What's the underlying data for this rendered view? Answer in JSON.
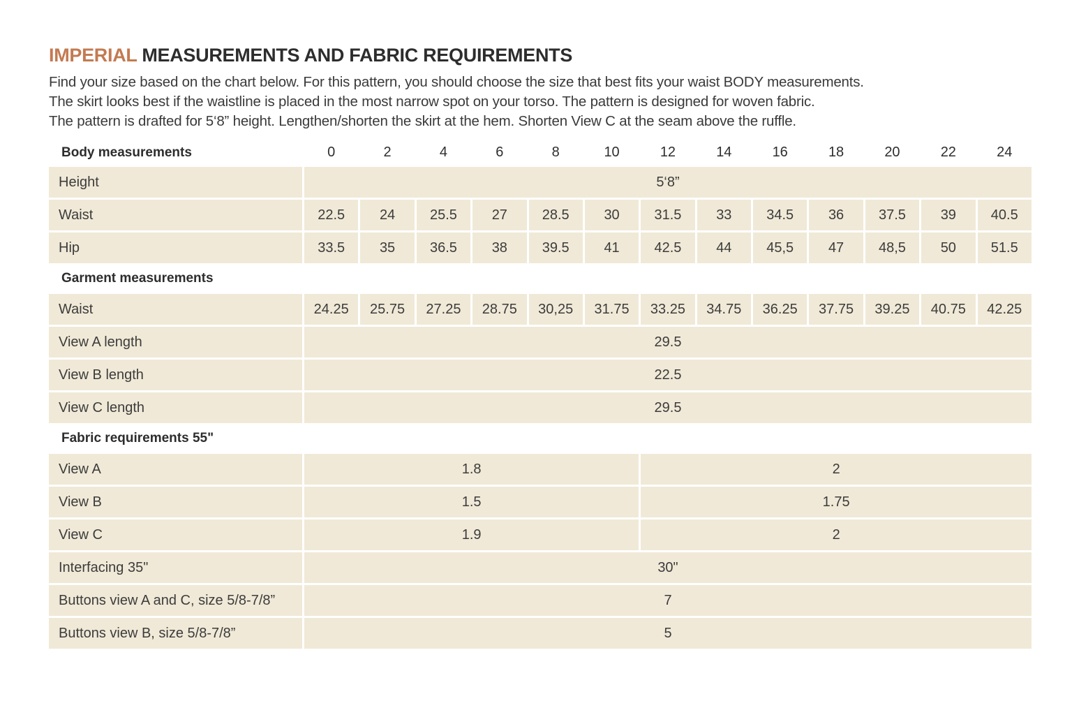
{
  "title": {
    "highlight": "IMPERIAL",
    "rest": " MEASUREMENTS AND FABRIC REQUIREMENTS"
  },
  "intro_lines": [
    "Find your size based on the chart below. For this pattern, you should choose the size that best fits your waist BODY measurements.",
    "The skirt looks best if the waistline is placed in the most narrow spot on your torso. The pattern is designed for woven fabric.",
    "The pattern is drafted for 5‘8” height. Lengthen/shorten the skirt at the hem. Shorten View C at the seam above the ruffle."
  ],
  "colors": {
    "accent": "#c47a51",
    "cell_background": "#f0e9d7",
    "heading_text": "#2d2d2d",
    "body_text": "#3c3c3c"
  },
  "table": {
    "header": {
      "label": "Body measurements",
      "sizes": [
        "0",
        "2",
        "4",
        "6",
        "8",
        "10",
        "12",
        "14",
        "16",
        "18",
        "20",
        "22",
        "24"
      ]
    },
    "rows": [
      {
        "label": "Height",
        "cells": [
          {
            "v": "5‘8”",
            "span": 13
          }
        ]
      },
      {
        "label": "Waist",
        "cells": [
          {
            "v": "22.5"
          },
          {
            "v": "24"
          },
          {
            "v": "25.5"
          },
          {
            "v": "27"
          },
          {
            "v": "28.5"
          },
          {
            "v": "30"
          },
          {
            "v": "31.5"
          },
          {
            "v": "33"
          },
          {
            "v": "34.5"
          },
          {
            "v": "36"
          },
          {
            "v": "37.5"
          },
          {
            "v": "39"
          },
          {
            "v": "40.5"
          }
        ]
      },
      {
        "label": "Hip",
        "cells": [
          {
            "v": "33.5"
          },
          {
            "v": "35"
          },
          {
            "v": "36.5"
          },
          {
            "v": "38"
          },
          {
            "v": "39.5"
          },
          {
            "v": "41"
          },
          {
            "v": "42.5"
          },
          {
            "v": "44"
          },
          {
            "v": "45,5"
          },
          {
            "v": "47"
          },
          {
            "v": "48,5"
          },
          {
            "v": "50"
          },
          {
            "v": "51.5"
          }
        ]
      },
      {
        "section": "Garment measurements"
      },
      {
        "label": "Waist",
        "cells": [
          {
            "v": "24.25"
          },
          {
            "v": "25.75"
          },
          {
            "v": "27.25"
          },
          {
            "v": "28.75"
          },
          {
            "v": "30,25"
          },
          {
            "v": "31.75"
          },
          {
            "v": "33.25"
          },
          {
            "v": "34.75"
          },
          {
            "v": "36.25"
          },
          {
            "v": "37.75"
          },
          {
            "v": "39.25"
          },
          {
            "v": "40.75"
          },
          {
            "v": "42.25"
          }
        ]
      },
      {
        "label": "View A length",
        "cells": [
          {
            "v": "29.5",
            "span": 13
          }
        ]
      },
      {
        "label": "View B length",
        "cells": [
          {
            "v": "22.5",
            "span": 13
          }
        ]
      },
      {
        "label": "View C length",
        "cells": [
          {
            "v": "29.5",
            "span": 13
          }
        ]
      },
      {
        "section": "Fabric requirements 55\""
      },
      {
        "label": "View A",
        "cells": [
          {
            "v": "1.8",
            "span": 6
          },
          {
            "v": "2",
            "span": 7
          }
        ]
      },
      {
        "label": "View B",
        "cells": [
          {
            "v": "1.5",
            "span": 6
          },
          {
            "v": "1.75",
            "span": 7
          }
        ]
      },
      {
        "label": "View C",
        "cells": [
          {
            "v": "1.9",
            "span": 6
          },
          {
            "v": "2",
            "span": 7
          }
        ]
      },
      {
        "label": "Interfacing 35\"",
        "cells": [
          {
            "v": "30\"",
            "span": 13
          }
        ]
      },
      {
        "label": "Buttons view A and C, size 5/8-7/8”",
        "cells": [
          {
            "v": "7",
            "span": 13
          }
        ]
      },
      {
        "label": "Buttons view B, size 5/8-7/8”",
        "cells": [
          {
            "v": "5",
            "span": 13
          }
        ]
      }
    ]
  }
}
